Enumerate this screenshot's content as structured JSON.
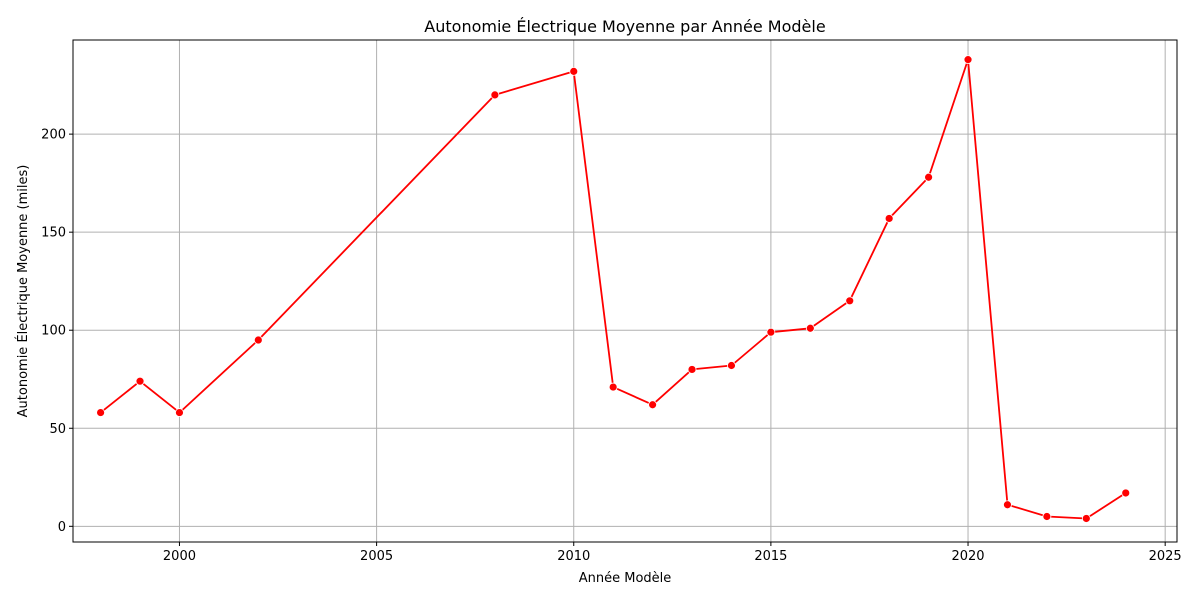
{
  "chart_data": {
    "type": "line",
    "title": "Autonomie Électrique Moyenne par Année Modèle",
    "xlabel": "Année Modèle",
    "ylabel": "Autonomie Électrique Moyenne (miles)",
    "xlim": [
      1997.3,
      2025.3
    ],
    "ylim": [
      -8,
      248
    ],
    "xticks": [
      2000,
      2005,
      2010,
      2015,
      2020,
      2025
    ],
    "yticks": [
      0,
      50,
      100,
      150,
      200
    ],
    "grid": true,
    "colors": {
      "line": "#ff0000",
      "marker": "#ff0000",
      "grid": "#b0b0b0"
    },
    "series": [
      {
        "x": [
          1998,
          1999,
          2000,
          2002,
          2008,
          2010,
          2011,
          2012,
          2013,
          2014,
          2015,
          2016,
          2017,
          2018,
          2019,
          2020,
          2021,
          2022,
          2023,
          2024
        ],
        "y": [
          58,
          74,
          58,
          95,
          220,
          232,
          71,
          62,
          80,
          82,
          99,
          101,
          115,
          157,
          178,
          238,
          11,
          5,
          4,
          17
        ]
      }
    ]
  }
}
